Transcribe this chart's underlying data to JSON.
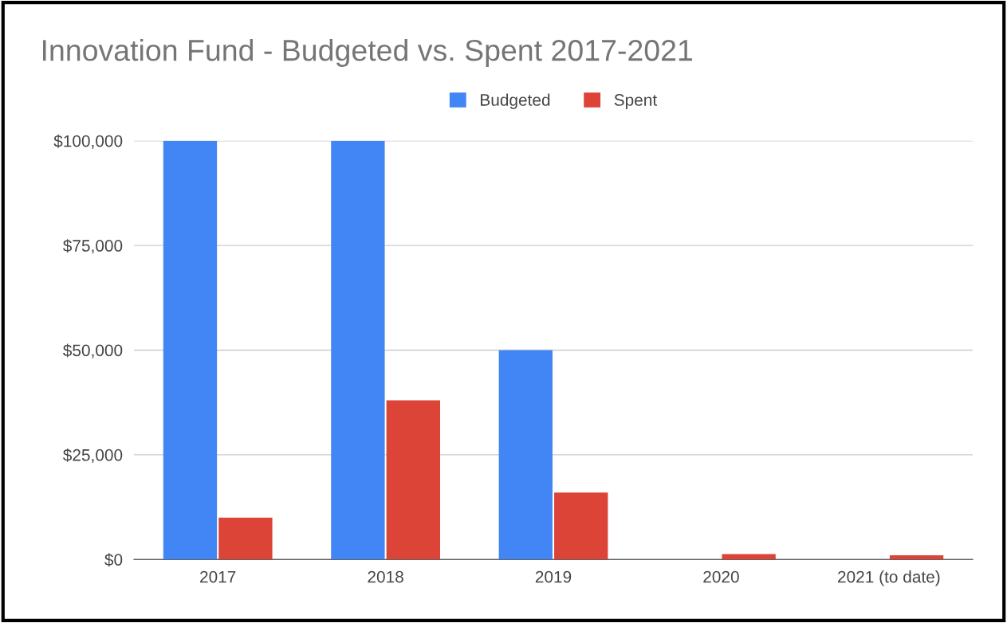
{
  "chart_data": {
    "type": "bar",
    "title": "Innovation Fund - Budgeted vs. Spent 2017-2021",
    "categories": [
      "2017",
      "2018",
      "2019",
      "2020",
      "2021 (to date)"
    ],
    "series": [
      {
        "name": "Budgeted",
        "color": "#4285f4",
        "values": [
          100000,
          100000,
          50000,
          0,
          0
        ]
      },
      {
        "name": "Spent",
        "color": "#db4437",
        "values": [
          10000,
          38000,
          16000,
          1300,
          1000
        ]
      }
    ],
    "ylim": [
      0,
      100000
    ],
    "yticks": [
      {
        "value": 0,
        "label": "$0"
      },
      {
        "value": 25000,
        "label": "$25,000"
      },
      {
        "value": 50000,
        "label": "$50,000"
      },
      {
        "value": 75000,
        "label": "$75,000"
      },
      {
        "value": 100000,
        "label": "$100,000"
      }
    ],
    "grid": "y",
    "legend": "top"
  }
}
